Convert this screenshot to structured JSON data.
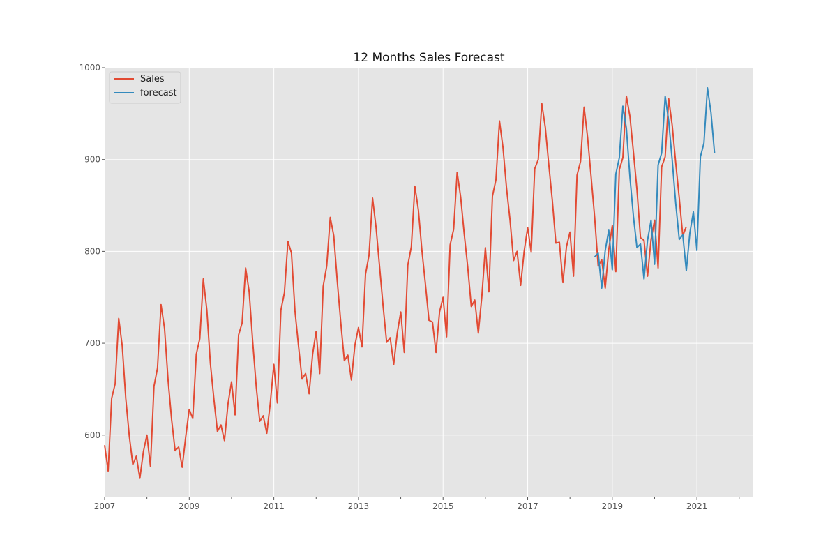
{
  "chart_data": {
    "type": "line",
    "title": "12 Months Sales Forecast",
    "xlabel": "",
    "ylabel": "",
    "x_axis": {
      "kind": "date",
      "range": [
        "2007-01",
        "2022-05"
      ],
      "major_ticks": [
        "2007",
        "2009",
        "2011",
        "2013",
        "2015",
        "2017",
        "2019",
        "2021"
      ],
      "minor_ticks": [
        "2008",
        "2010",
        "2012",
        "2014",
        "2016",
        "2018",
        "2020",
        "2022"
      ]
    },
    "y_axis": {
      "range": [
        533,
        1000
      ],
      "ticks": [
        600,
        700,
        800,
        900,
        1000
      ]
    },
    "grid": true,
    "legend": {
      "placement": "top-left"
    },
    "colors": {
      "Sales": "#E24A33",
      "forecast": "#348ABD"
    },
    "series": [
      {
        "name": "Sales",
        "x_start": "2007-01",
        "frequency": "monthly",
        "values": [
          589,
          561,
          640,
          656,
          727,
          697,
          640,
          599,
          568,
          577,
          553,
          582,
          600,
          566,
          653,
          673,
          742,
          716,
          660,
          617,
          583,
          587,
          565,
          598,
          628,
          618,
          688,
          705,
          770,
          736,
          678,
          639,
          604,
          611,
          594,
          634,
          658,
          622,
          709,
          722,
          782,
          756,
          702,
          653,
          615,
          621,
          602,
          635,
          677,
          635,
          736,
          755,
          811,
          798,
          735,
          697,
          661,
          667,
          645,
          688,
          713,
          667,
          762,
          784,
          837,
          817,
          767,
          722,
          681,
          687,
          660,
          698,
          717,
          696,
          775,
          796,
          858,
          826,
          783,
          740,
          701,
          706,
          677,
          711,
          734,
          690,
          785,
          805,
          871,
          845,
          801,
          764,
          725,
          723,
          690,
          734,
          750,
          707,
          807,
          824,
          886,
          859,
          819,
          783,
          740,
          747,
          711,
          751,
          804,
          756,
          860,
          878,
          942,
          913,
          869,
          834,
          790,
          800,
          763,
          800,
          826,
          799,
          890,
          900,
          961,
          935,
          894,
          855,
          809,
          810,
          766,
          805,
          821,
          773,
          883,
          898,
          957,
          924,
          881,
          837,
          784,
          791,
          760,
          802,
          828,
          778,
          889,
          902,
          969,
          947,
          908,
          867,
          815,
          812,
          773,
          813,
          834,
          782,
          892,
          903,
          966,
          937,
          896,
          858,
          817,
          827
        ]
      },
      {
        "name": "forecast",
        "x_start": "2018-08",
        "frequency": "monthly",
        "values": [
          794,
          798,
          760,
          801,
          823,
          780,
          884,
          902,
          958,
          934,
          881,
          838,
          804,
          808,
          770,
          812,
          834,
          786,
          894,
          907,
          969,
          942,
          899,
          852,
          813,
          818,
          779,
          820,
          843,
          801,
          903,
          918,
          978,
          951,
          907
        ]
      }
    ]
  }
}
